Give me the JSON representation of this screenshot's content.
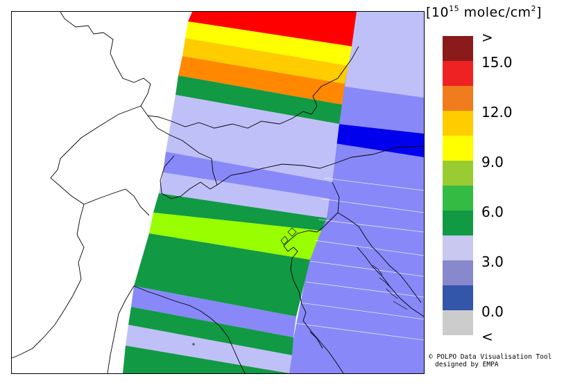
{
  "map": {
    "unit_text": "[10",
    "unit_sup": "15",
    "unit_rest": " molec/cm",
    "unit_sup2": "2",
    "unit_close": "]"
  },
  "legend": {
    "labels": [
      ">",
      "15.0",
      "12.0",
      "9.0",
      "6.0",
      "3.0",
      "0.0",
      "<"
    ],
    "swatches": [
      {
        "color": "#8b1a1a",
        "meaning": "above range"
      },
      {
        "color": "#ee2222",
        "meaning": "15.0"
      },
      {
        "color": "#f07c1e",
        "meaning": "13.5"
      },
      {
        "color": "#ffcc00",
        "meaning": "12.0"
      },
      {
        "color": "#ffff00",
        "meaning": "10.5"
      },
      {
        "color": "#99cc33",
        "meaning": "9.0"
      },
      {
        "color": "#33bb44",
        "meaning": "7.5"
      },
      {
        "color": "#119944",
        "meaning": "6.0"
      },
      {
        "color": "#c8c8f0",
        "meaning": "4.5"
      },
      {
        "color": "#8888cc",
        "meaning": "3.0"
      },
      {
        "color": "#3355aa",
        "meaning": "1.5"
      },
      {
        "color": "#cccccc",
        "meaning": "below range"
      }
    ]
  },
  "credit": {
    "line1": "© POLPO Data Visualisation Tool",
    "line2": "designed by EMPA"
  },
  "colors": {
    "red": "#ff0000",
    "yellow": "#ffff00",
    "amber": "#ffcc00",
    "orange": "#ff8800",
    "green": "#119944",
    "lime": "#99ff00",
    "lavender": "#c0c0f8",
    "periwinkle": "#8888f8",
    "blue": "#0000ee"
  }
}
